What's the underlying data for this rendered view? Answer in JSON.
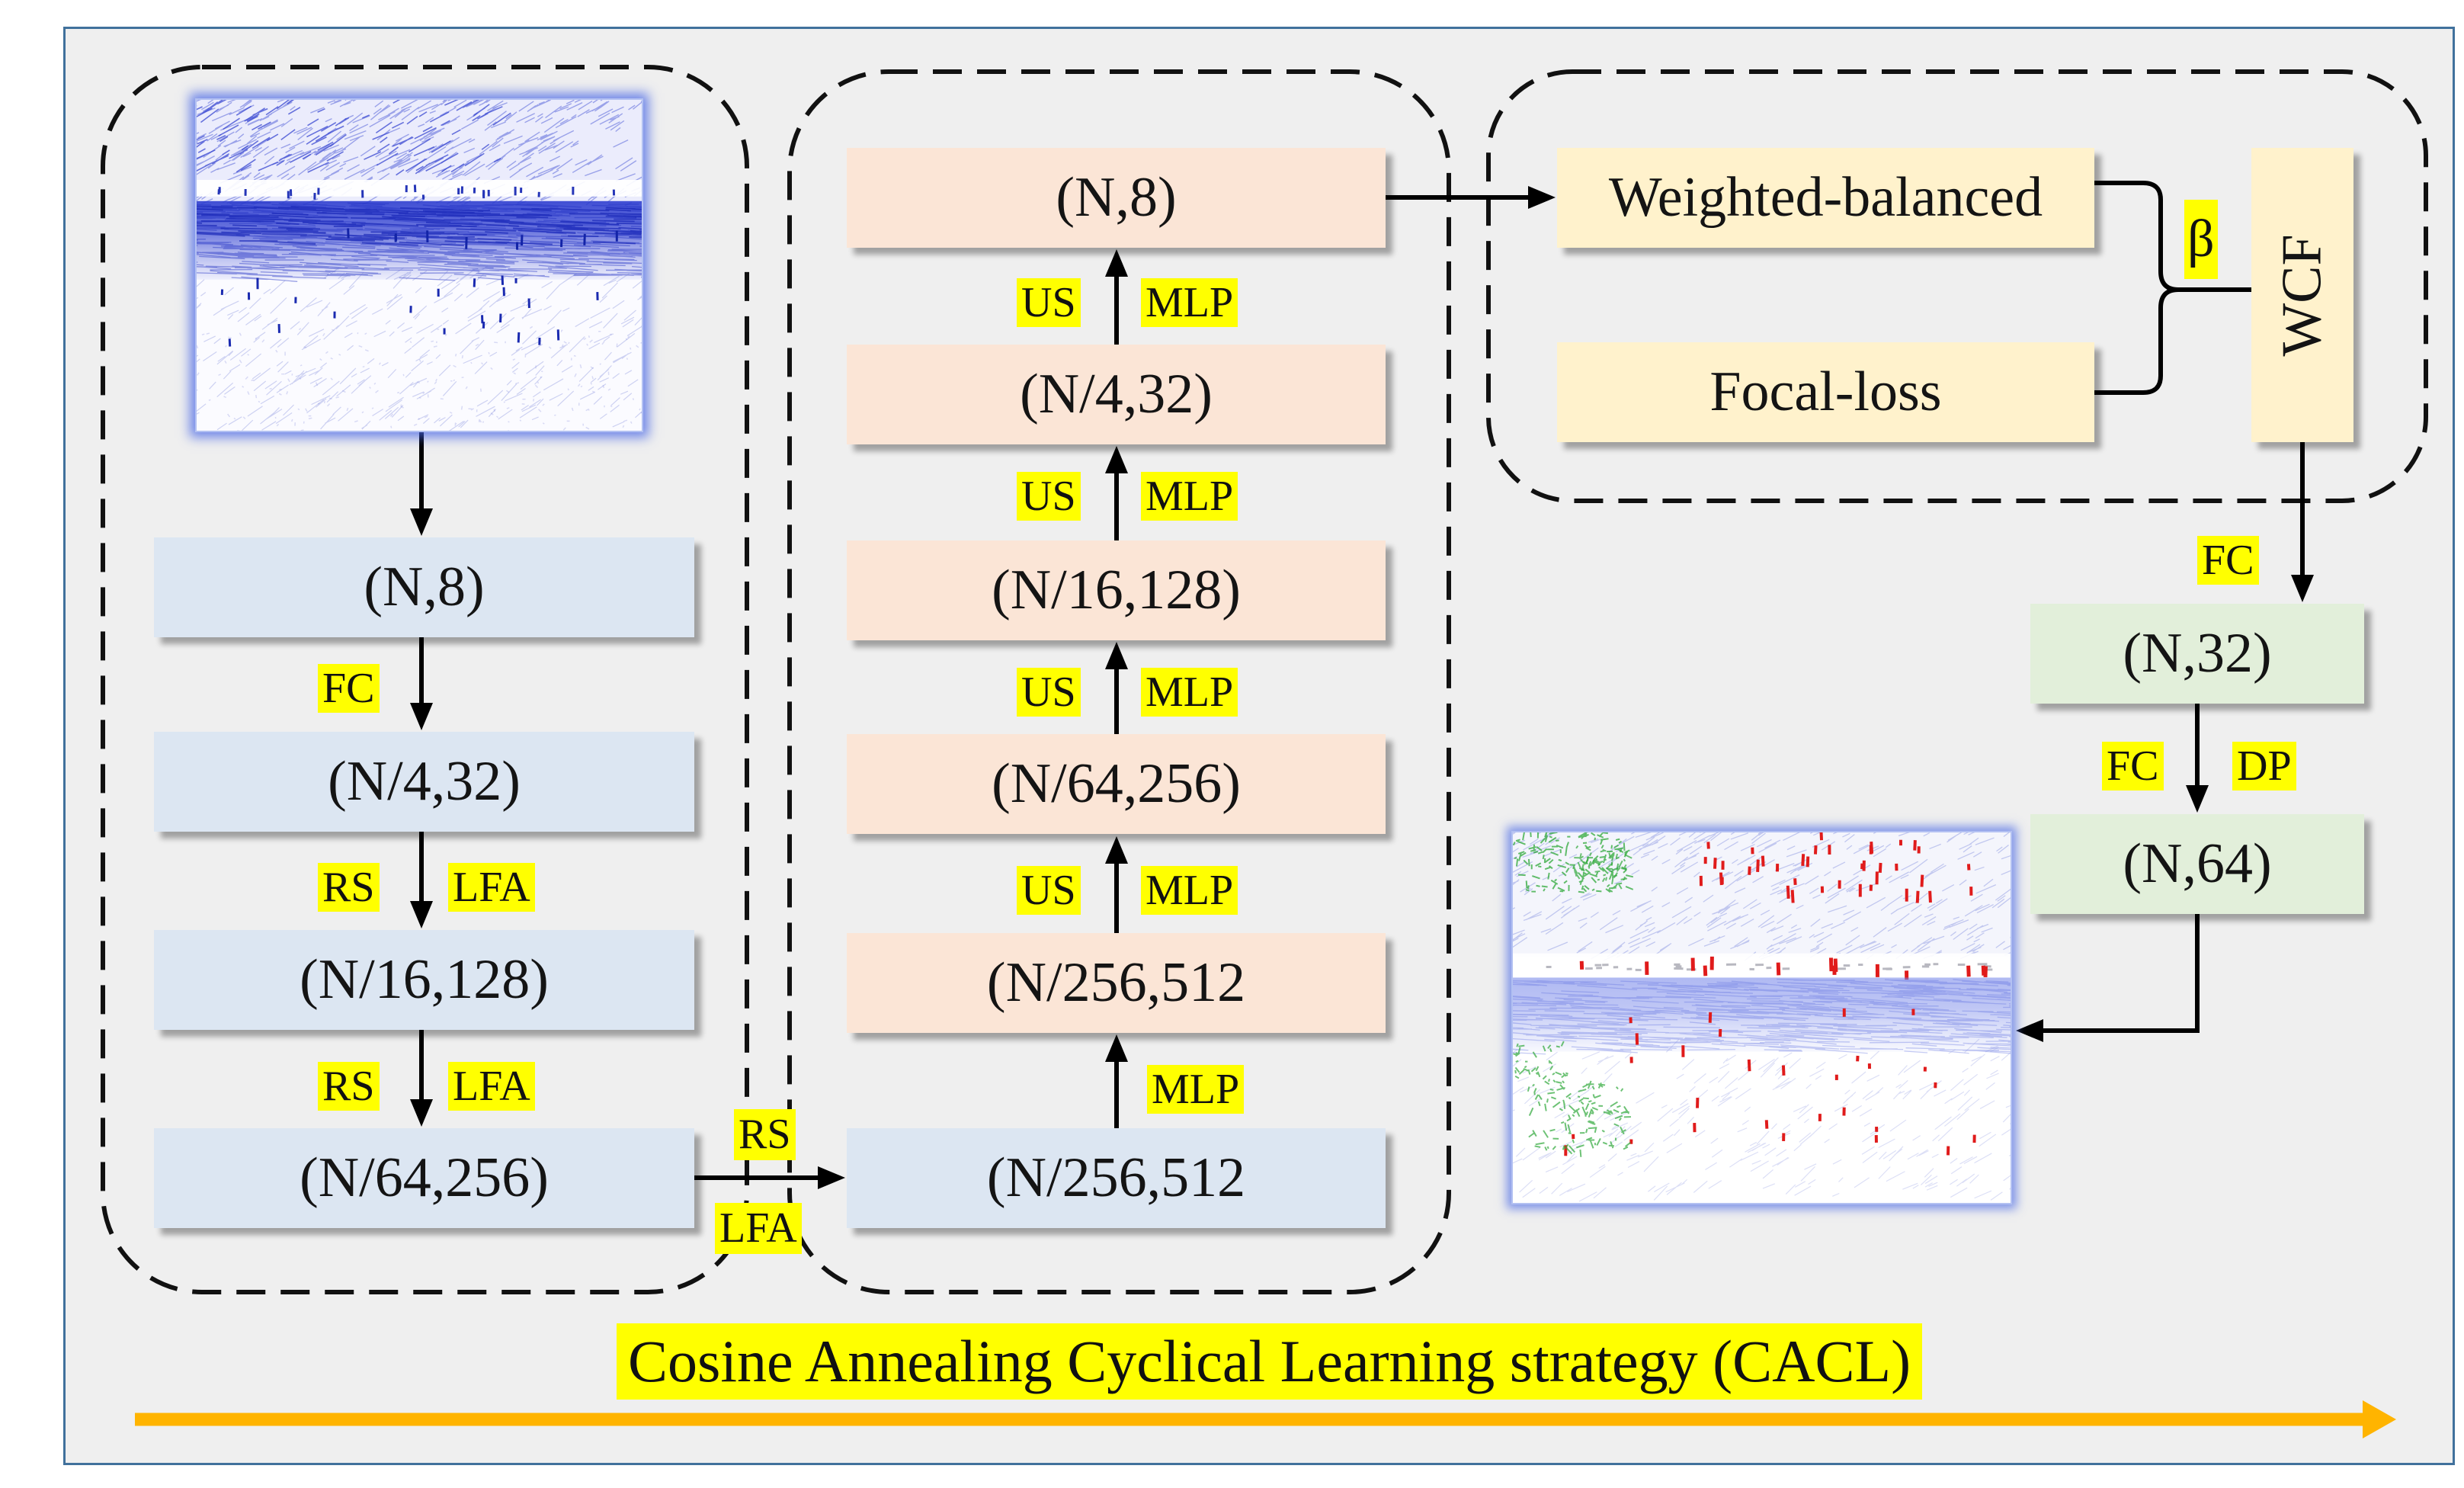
{
  "encoder": {
    "boxes": [
      "(N,8)",
      "(N/4,32)",
      "(N/16,128)",
      "(N/64,256)"
    ],
    "steps": [
      {
        "left": "FC"
      },
      {
        "left": "RS",
        "right": "LFA"
      },
      {
        "left": "RS",
        "right": "LFA"
      }
    ]
  },
  "bridge": {
    "top": "RS",
    "bottom": "LFA"
  },
  "decoder": {
    "boxes": [
      "(N,8)",
      "(N/4,32)",
      "(N/16,128)",
      "(N/64,256)",
      "(N/256,512",
      "(N/256,512"
    ],
    "steps": [
      {
        "left": "US",
        "right": "MLP"
      },
      {
        "left": "US",
        "right": "MLP"
      },
      {
        "left": "US",
        "right": "MLP"
      },
      {
        "left": "US",
        "right": "MLP"
      },
      {
        "right": "MLP"
      }
    ]
  },
  "loss": {
    "weighted": "Weighted-balanced",
    "focal": "Focal-loss",
    "beta": "β",
    "combined": "WCF"
  },
  "head": {
    "wcf_step": "FC",
    "box1": "(N,32)",
    "step": {
      "left": "FC",
      "right": "DP"
    },
    "box2": "(N,64)"
  },
  "strategy": {
    "caption": "Cosine Annealing Cyclical Learning strategy (CACL)"
  },
  "colors": {
    "frame_background": "#efefef",
    "frame_border": "#41719c",
    "encoder_box": "#dce6f2",
    "decoder_box": "#fbe5d6",
    "loss_box": "#fff2cc",
    "head_box": "#e2efda",
    "label_highlight": "#ffff00",
    "arrow": "#000000",
    "schedule_arrow": "#ffb400",
    "input_points": "#2c3ccf",
    "predicted_red": "#e01b1b",
    "predicted_green": "#2fa83a"
  }
}
